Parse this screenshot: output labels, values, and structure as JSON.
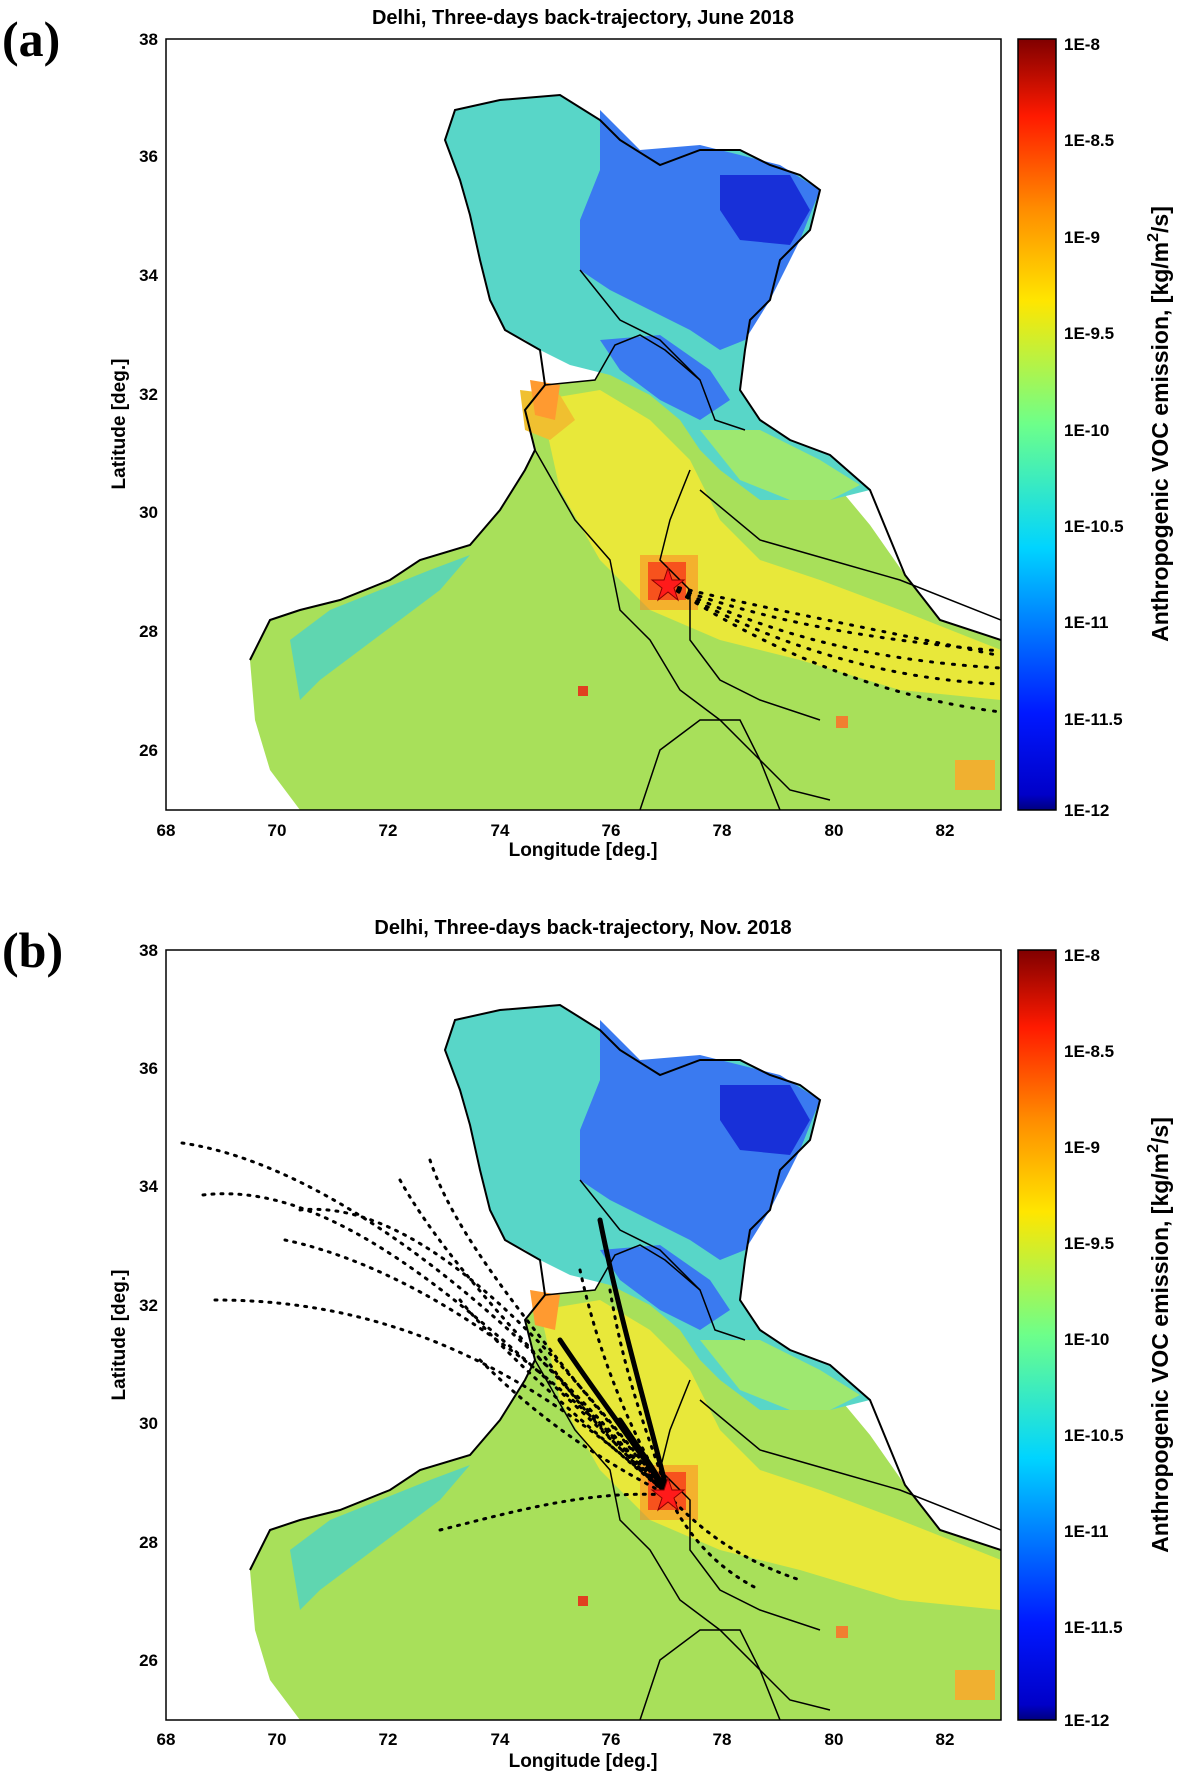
{
  "figure": {
    "panels": [
      {
        "id": "a",
        "label": "(a)",
        "title": "Delhi, Three-days back-trajectory, June 2018",
        "xlabel": "Longitude [deg.]",
        "ylabel": "Latitude [deg.]",
        "trajectory_pattern": "eastern approach along Indo-Gangetic Plain"
      },
      {
        "id": "b",
        "label": "(b)",
        "title": "Delhi, Three-days back-trajectory, Nov. 2018",
        "xlabel": "Longitude [deg.]",
        "ylabel": "Latitude [deg.]",
        "trajectory_pattern": "north-western approach from Punjab and Pakistan"
      }
    ],
    "x_ticks": [
      "68",
      "70",
      "72",
      "74",
      "76",
      "78",
      "80",
      "82"
    ],
    "y_ticks": [
      "26",
      "28",
      "30",
      "32",
      "34",
      "36",
      "38"
    ],
    "x_range": [
      68,
      83
    ],
    "y_range": [
      25,
      38
    ],
    "receptor": {
      "name": "Delhi",
      "lon": 77.1,
      "lat": 28.65,
      "marker": "red star"
    },
    "colorbar": {
      "label_main": "Anthropogenic VOC emission, [kg/m",
      "label_sup": "2",
      "label_end": "/s]",
      "scale": "log10",
      "range": [
        -12,
        -8
      ],
      "ticks": [
        "1E-8",
        "1E-8.5",
        "1E-9",
        "1E-9.5",
        "1E-10",
        "1E-10.5",
        "1E-11",
        "1E-11.5",
        "1E-12"
      ],
      "colormap": "jet"
    }
  }
}
